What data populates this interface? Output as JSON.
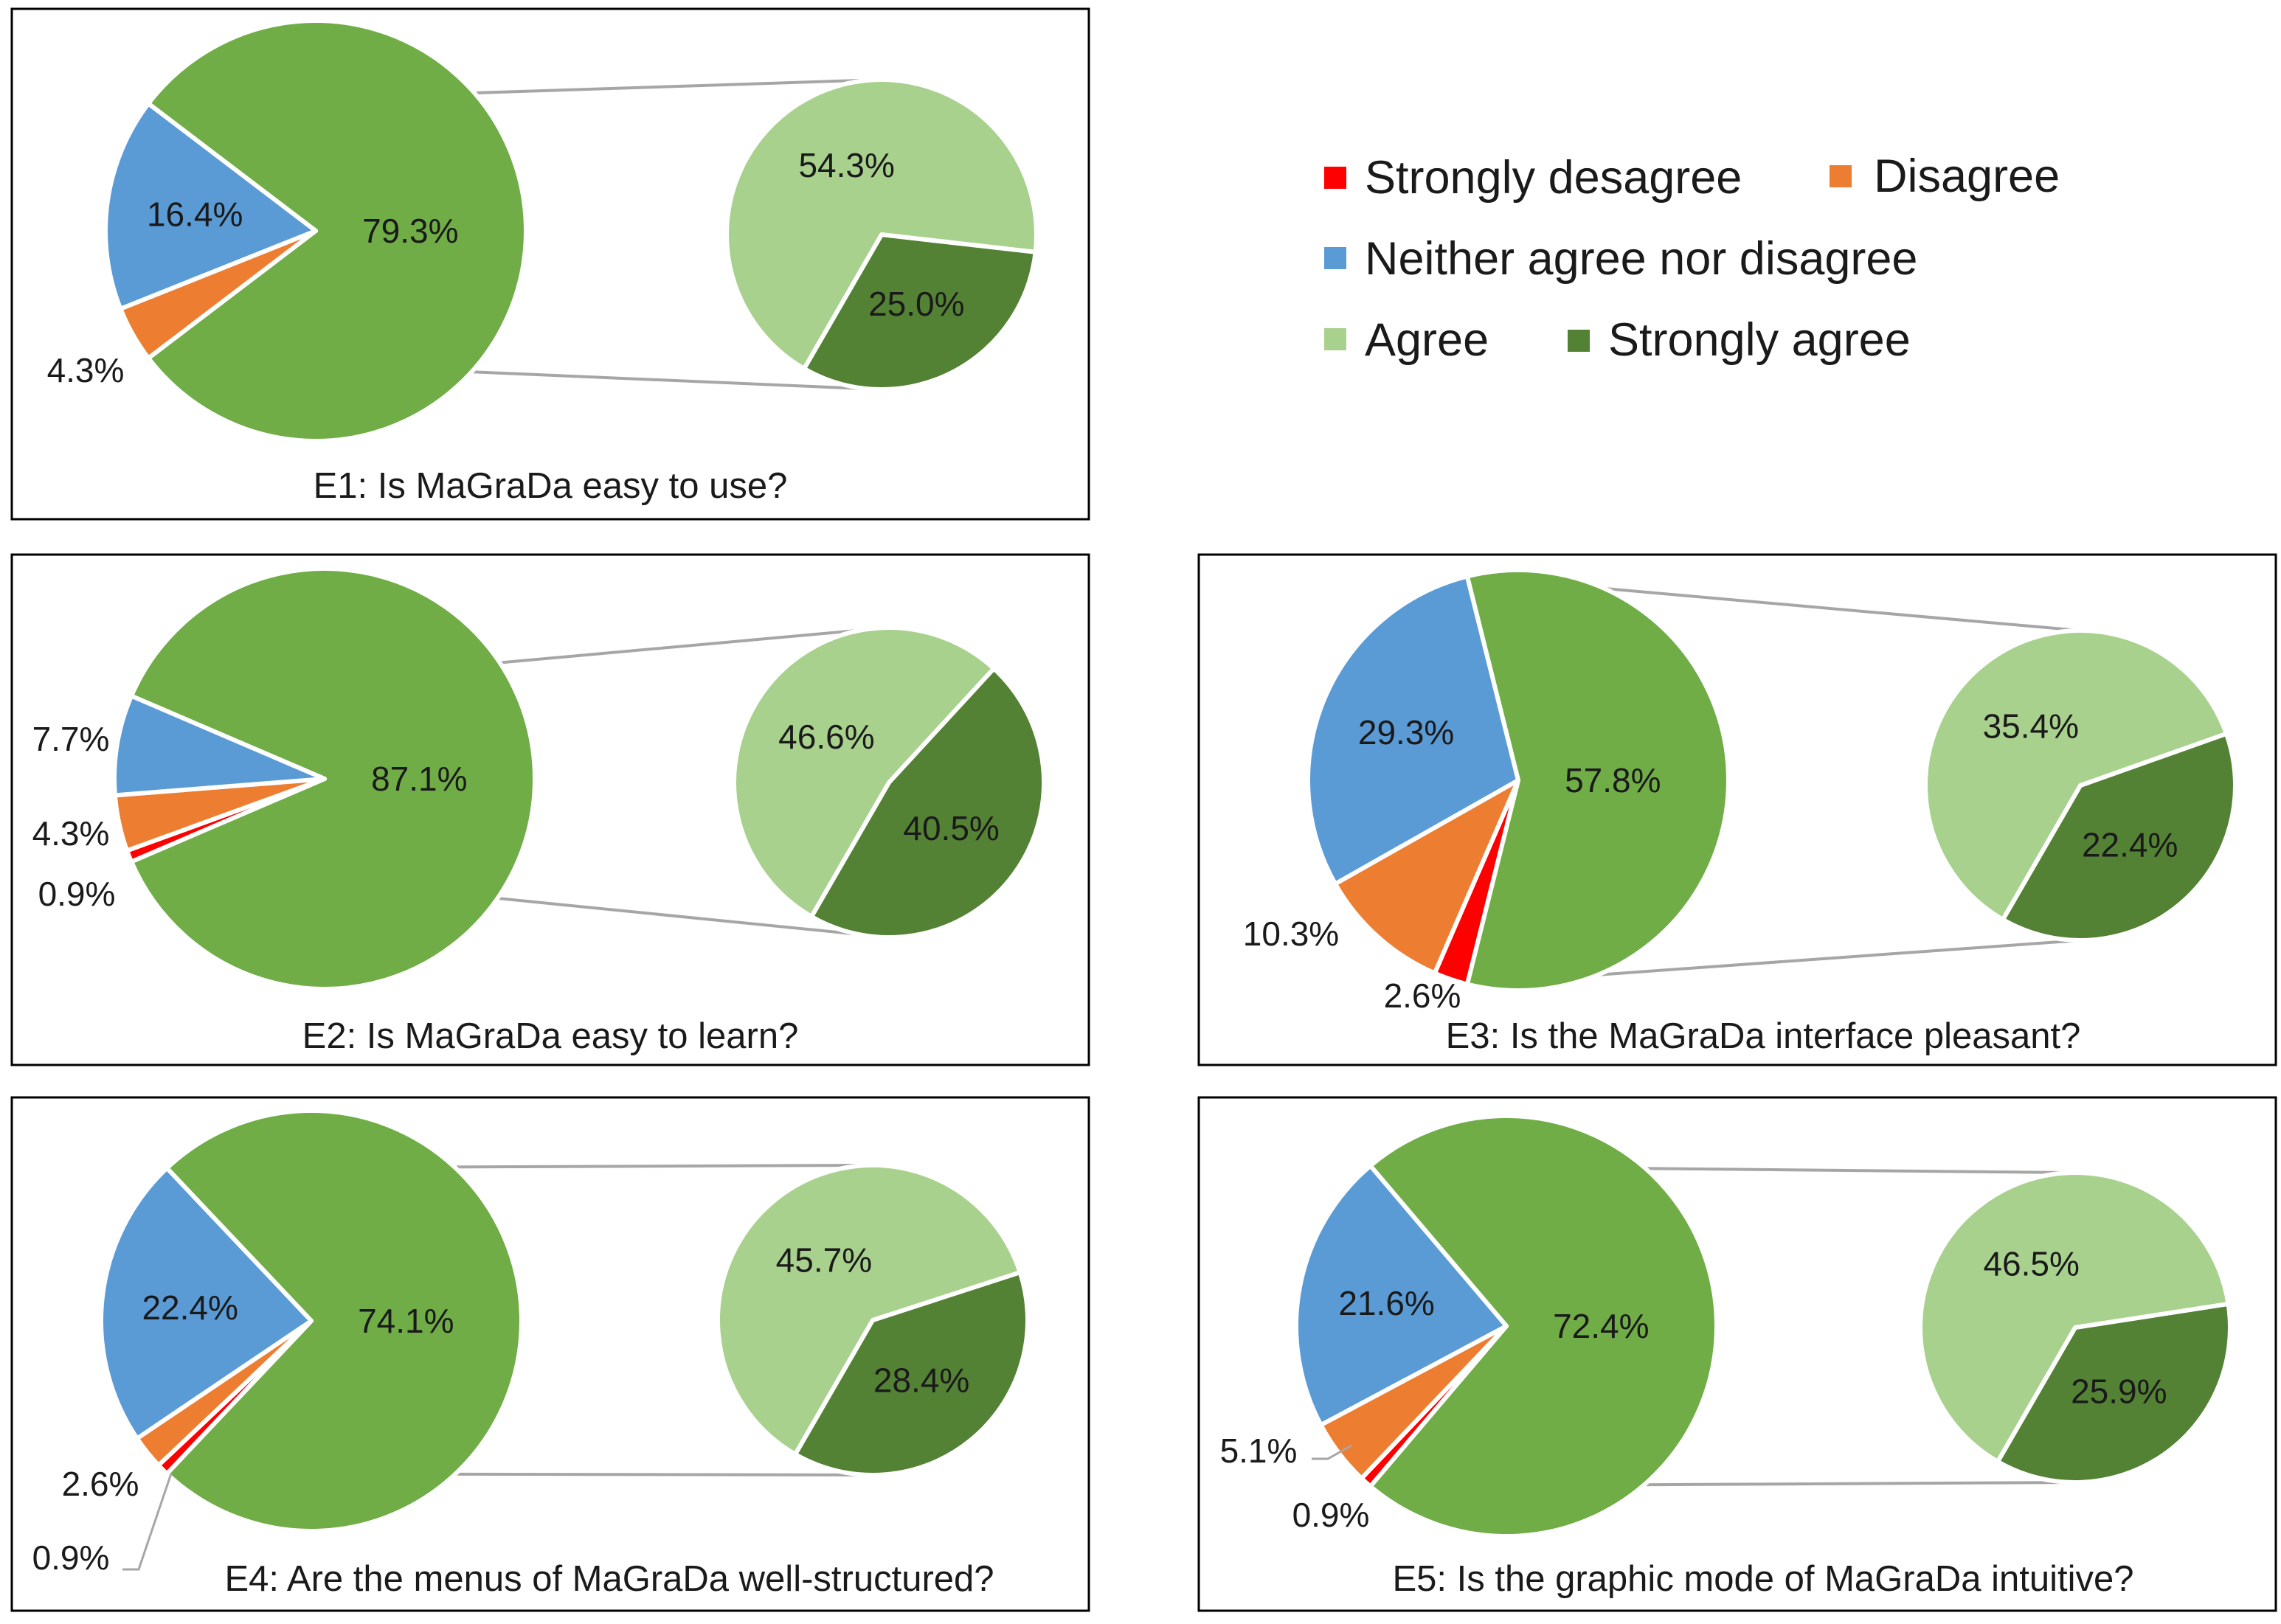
{
  "legend": [
    {
      "key": "strongly_disagree",
      "label": "Strongly desagree",
      "color": "#FF0000"
    },
    {
      "key": "disagree",
      "label": "Disagree",
      "color": "#ED7D31"
    },
    {
      "key": "neutral",
      "label": "Neither agree nor disagree",
      "color": "#5B9BD5"
    },
    {
      "key": "agree",
      "label": "Agree",
      "color": "#A9D18E"
    },
    {
      "key": "strongly_agree",
      "label": "Strongly agree",
      "color": "#548235"
    }
  ],
  "colors": {
    "strongly_disagree": "#FF0000",
    "disagree": "#ED7D31",
    "neutral": "#5B9BD5",
    "agree_combined": "#70AD47",
    "agree": "#A9D18E",
    "strongly_agree": "#548235"
  },
  "chart_data": [
    {
      "id": "E1",
      "type": "pie-of-pie",
      "title": "E1: Is MaGraDa easy to use?",
      "main": [
        {
          "key": "disagree",
          "value": 4.3,
          "label": "4.3%"
        },
        {
          "key": "neutral",
          "value": 16.4,
          "label": "16.4%"
        },
        {
          "key": "agree_combined",
          "value": 79.3,
          "label": "79.3%"
        }
      ],
      "breakdown": [
        {
          "key": "agree",
          "value": 54.3,
          "label": "54.3%"
        },
        {
          "key": "strongly_agree",
          "value": 25.0,
          "label": "25.0%"
        }
      ]
    },
    {
      "id": "E2",
      "type": "pie-of-pie",
      "title": "E2: Is MaGraDa easy to learn?",
      "main": [
        {
          "key": "strongly_disagree",
          "value": 0.9,
          "label": "0.9%"
        },
        {
          "key": "disagree",
          "value": 4.3,
          "label": "4.3%"
        },
        {
          "key": "neutral",
          "value": 7.7,
          "label": "7.7%"
        },
        {
          "key": "agree_combined",
          "value": 87.1,
          "label": "87.1%"
        }
      ],
      "breakdown": [
        {
          "key": "agree",
          "value": 46.6,
          "label": "46.6%"
        },
        {
          "key": "strongly_agree",
          "value": 40.5,
          "label": "40.5%"
        }
      ]
    },
    {
      "id": "E3",
      "type": "pie-of-pie",
      "title": "E3: Is the MaGraDa interface pleasant?",
      "main": [
        {
          "key": "strongly_disagree",
          "value": 2.6,
          "label": "2.6%"
        },
        {
          "key": "disagree",
          "value": 10.3,
          "label": "10.3%"
        },
        {
          "key": "neutral",
          "value": 29.3,
          "label": "29.3%"
        },
        {
          "key": "agree_combined",
          "value": 57.8,
          "label": "57.8%"
        }
      ],
      "breakdown": [
        {
          "key": "agree",
          "value": 35.4,
          "label": "35.4%"
        },
        {
          "key": "strongly_agree",
          "value": 22.4,
          "label": "22.4%"
        }
      ]
    },
    {
      "id": "E4",
      "type": "pie-of-pie",
      "title": "E4: Are the menus of MaGraDa well-structured?",
      "main": [
        {
          "key": "strongly_disagree",
          "value": 0.9,
          "label": "0.9%"
        },
        {
          "key": "disagree",
          "value": 2.6,
          "label": "2.6%"
        },
        {
          "key": "neutral",
          "value": 22.4,
          "label": "22.4%"
        },
        {
          "key": "agree_combined",
          "value": 74.1,
          "label": "74.1%"
        }
      ],
      "breakdown": [
        {
          "key": "agree",
          "value": 45.7,
          "label": "45.7%"
        },
        {
          "key": "strongly_agree",
          "value": 28.4,
          "label": "28.4%"
        }
      ]
    },
    {
      "id": "E5",
      "type": "pie-of-pie",
      "title": "E5: Is the graphic mode of MaGraDa intuitive?",
      "main": [
        {
          "key": "strongly_disagree",
          "value": 0.9,
          "label": "0.9%"
        },
        {
          "key": "disagree",
          "value": 5.1,
          "label": "5.1%"
        },
        {
          "key": "neutral",
          "value": 21.6,
          "label": "21.6%"
        },
        {
          "key": "agree_combined",
          "value": 72.4,
          "label": "72.4%"
        }
      ],
      "breakdown": [
        {
          "key": "agree",
          "value": 46.5,
          "label": "46.5%"
        },
        {
          "key": "strongly_agree",
          "value": 25.9,
          "label": "25.9%"
        }
      ]
    }
  ]
}
